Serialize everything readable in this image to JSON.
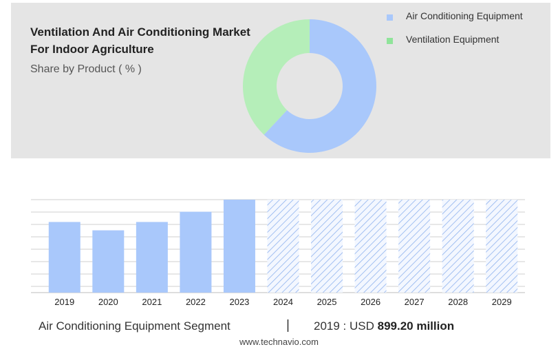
{
  "header": {
    "title": "Ventilation And Air Conditioning Market For Indoor Agriculture",
    "subtitle": "Share by Product ( % )"
  },
  "colors": {
    "ac": "#a9c8fb",
    "vent": "#b5eeb9",
    "vent_legend": "#90e49a",
    "bar": "#a9c8fb",
    "hatch": "#8fb2ee"
  },
  "chart_data": [
    {
      "type": "pie",
      "subtype": "donut",
      "legend_position": "top-right",
      "slices": [
        {
          "name": "Air Conditioning Equipment",
          "value": 62
        },
        {
          "name": "Ventilation Equipment",
          "value": 38
        }
      ]
    },
    {
      "type": "bar",
      "categories": [
        "2019",
        "2020",
        "2021",
        "2022",
        "2023",
        "2024",
        "2025",
        "2026",
        "2027",
        "2028",
        "2029"
      ],
      "values": [
        0.76,
        0.67,
        0.76,
        0.87,
        1.0,
        null,
        null,
        null,
        null,
        null,
        null
      ],
      "forecast_categories": [
        "2024",
        "2025",
        "2026",
        "2027",
        "2028",
        "2029"
      ],
      "ylim": [
        0,
        1
      ],
      "grid": true
    }
  ],
  "footer": {
    "segment": "Air Conditioning Equipment Segment",
    "divider": "|",
    "value_prefix": "2019 : USD",
    "value": "899.20 million",
    "url": "www.technavio.com"
  }
}
